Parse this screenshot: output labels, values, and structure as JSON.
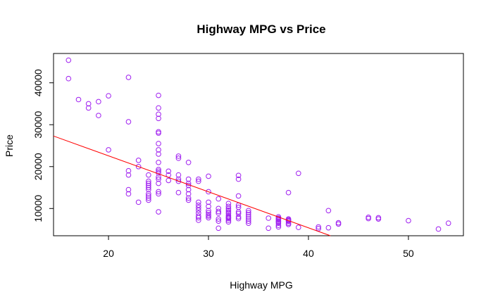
{
  "chart_data": {
    "type": "scatter",
    "title": "Highway MPG vs Price",
    "xlabel": "Highway MPG",
    "ylabel": "Price",
    "xlim": [
      14.5,
      55.5
    ],
    "ylim": [
      3500,
      47000
    ],
    "xticks": [
      20,
      30,
      40,
      50
    ],
    "yticks": [
      10000,
      20000,
      30000,
      40000
    ],
    "grid": false,
    "colors": {
      "points": "#a020f0",
      "fit_line": "#ff0000",
      "axes": "#000000"
    },
    "trendline": {
      "x": [
        14.5,
        42.2
      ],
      "y": [
        27300,
        3500
      ]
    },
    "points": [
      [
        16,
        45400
      ],
      [
        16,
        41000
      ],
      [
        17,
        36000
      ],
      [
        18,
        35000
      ],
      [
        18,
        34000
      ],
      [
        19,
        35500
      ],
      [
        19,
        32200
      ],
      [
        20,
        36900
      ],
      [
        20,
        24000
      ],
      [
        22,
        41300
      ],
      [
        22,
        30700
      ],
      [
        22,
        19000
      ],
      [
        22,
        18000
      ],
      [
        22,
        14500
      ],
      [
        22,
        13500
      ],
      [
        23,
        21500
      ],
      [
        23,
        20000
      ],
      [
        23,
        11500
      ],
      [
        24,
        18000
      ],
      [
        24,
        16500
      ],
      [
        24,
        16000
      ],
      [
        24,
        15500
      ],
      [
        24,
        15000
      ],
      [
        24,
        14500
      ],
      [
        24,
        13500
      ],
      [
        24,
        13000
      ],
      [
        24,
        12500
      ],
      [
        24,
        12000
      ],
      [
        25,
        37000
      ],
      [
        25,
        34000
      ],
      [
        25,
        32500
      ],
      [
        25,
        31500
      ],
      [
        25,
        28300
      ],
      [
        25,
        28000
      ],
      [
        25,
        25500
      ],
      [
        25,
        24000
      ],
      [
        25,
        23000
      ],
      [
        25,
        21000
      ],
      [
        25,
        19300
      ],
      [
        25,
        18900
      ],
      [
        25,
        18500
      ],
      [
        25,
        17500
      ],
      [
        25,
        17000
      ],
      [
        25,
        16000
      ],
      [
        25,
        14000
      ],
      [
        25,
        13500
      ],
      [
        25,
        9200
      ],
      [
        26,
        18900
      ],
      [
        26,
        18000
      ],
      [
        26,
        16700
      ],
      [
        27,
        22500
      ],
      [
        27,
        22000
      ],
      [
        27,
        18000
      ],
      [
        27,
        17000
      ],
      [
        27,
        16500
      ],
      [
        27,
        13800
      ],
      [
        28,
        21000
      ],
      [
        28,
        17000
      ],
      [
        28,
        16000
      ],
      [
        28,
        15500
      ],
      [
        28,
        14500
      ],
      [
        28,
        13500
      ],
      [
        28,
        12500
      ],
      [
        28,
        12000
      ],
      [
        29,
        17000
      ],
      [
        29,
        16500
      ],
      [
        29,
        11500
      ],
      [
        29,
        10800
      ],
      [
        29,
        10200
      ],
      [
        29,
        9600
      ],
      [
        29,
        8900
      ],
      [
        29,
        8200
      ],
      [
        29,
        7800
      ],
      [
        29,
        7200
      ],
      [
        30,
        17700
      ],
      [
        30,
        14000
      ],
      [
        30,
        11500
      ],
      [
        30,
        10500
      ],
      [
        30,
        9500
      ],
      [
        30,
        9000
      ],
      [
        30,
        8500
      ],
      [
        30,
        8200
      ],
      [
        30,
        7800
      ],
      [
        31,
        12300
      ],
      [
        31,
        10000
      ],
      [
        31,
        9300
      ],
      [
        31,
        8900
      ],
      [
        31,
        7500
      ],
      [
        31,
        7000
      ],
      [
        31,
        5300
      ],
      [
        32,
        11200
      ],
      [
        32,
        10500
      ],
      [
        32,
        10000
      ],
      [
        32,
        9600
      ],
      [
        32,
        9200
      ],
      [
        32,
        8800
      ],
      [
        32,
        8300
      ],
      [
        32,
        8000
      ],
      [
        32,
        7800
      ],
      [
        32,
        7600
      ],
      [
        32,
        7200
      ],
      [
        32,
        6800
      ],
      [
        33,
        17900
      ],
      [
        33,
        17000
      ],
      [
        33,
        13000
      ],
      [
        33,
        10800
      ],
      [
        33,
        10300
      ],
      [
        33,
        9200
      ],
      [
        33,
        8800
      ],
      [
        33,
        8000
      ],
      [
        33,
        7600
      ],
      [
        34,
        9500
      ],
      [
        34,
        9000
      ],
      [
        34,
        8500
      ],
      [
        34,
        8000
      ],
      [
        34,
        7500
      ],
      [
        34,
        7000
      ],
      [
        34,
        6500
      ],
      [
        36,
        7700
      ],
      [
        36,
        5300
      ],
      [
        37,
        8000
      ],
      [
        37,
        7700
      ],
      [
        37,
        7500
      ],
      [
        37,
        7300
      ],
      [
        37,
        7000
      ],
      [
        37,
        6800
      ],
      [
        37,
        6500
      ],
      [
        37,
        6000
      ],
      [
        37,
        5600
      ],
      [
        38,
        13800
      ],
      [
        38,
        7500
      ],
      [
        38,
        7300
      ],
      [
        38,
        7100
      ],
      [
        38,
        6900
      ],
      [
        38,
        6500
      ],
      [
        38,
        6200
      ],
      [
        39,
        18400
      ],
      [
        39,
        5500
      ],
      [
        41,
        5600
      ],
      [
        41,
        5200
      ],
      [
        42,
        9500
      ],
      [
        42,
        5400
      ],
      [
        43,
        6600
      ],
      [
        43,
        6300
      ],
      [
        46,
        7900
      ],
      [
        46,
        7600
      ],
      [
        47,
        7800
      ],
      [
        47,
        7500
      ],
      [
        50,
        7100
      ],
      [
        53,
        5100
      ],
      [
        54,
        6500
      ]
    ]
  }
}
